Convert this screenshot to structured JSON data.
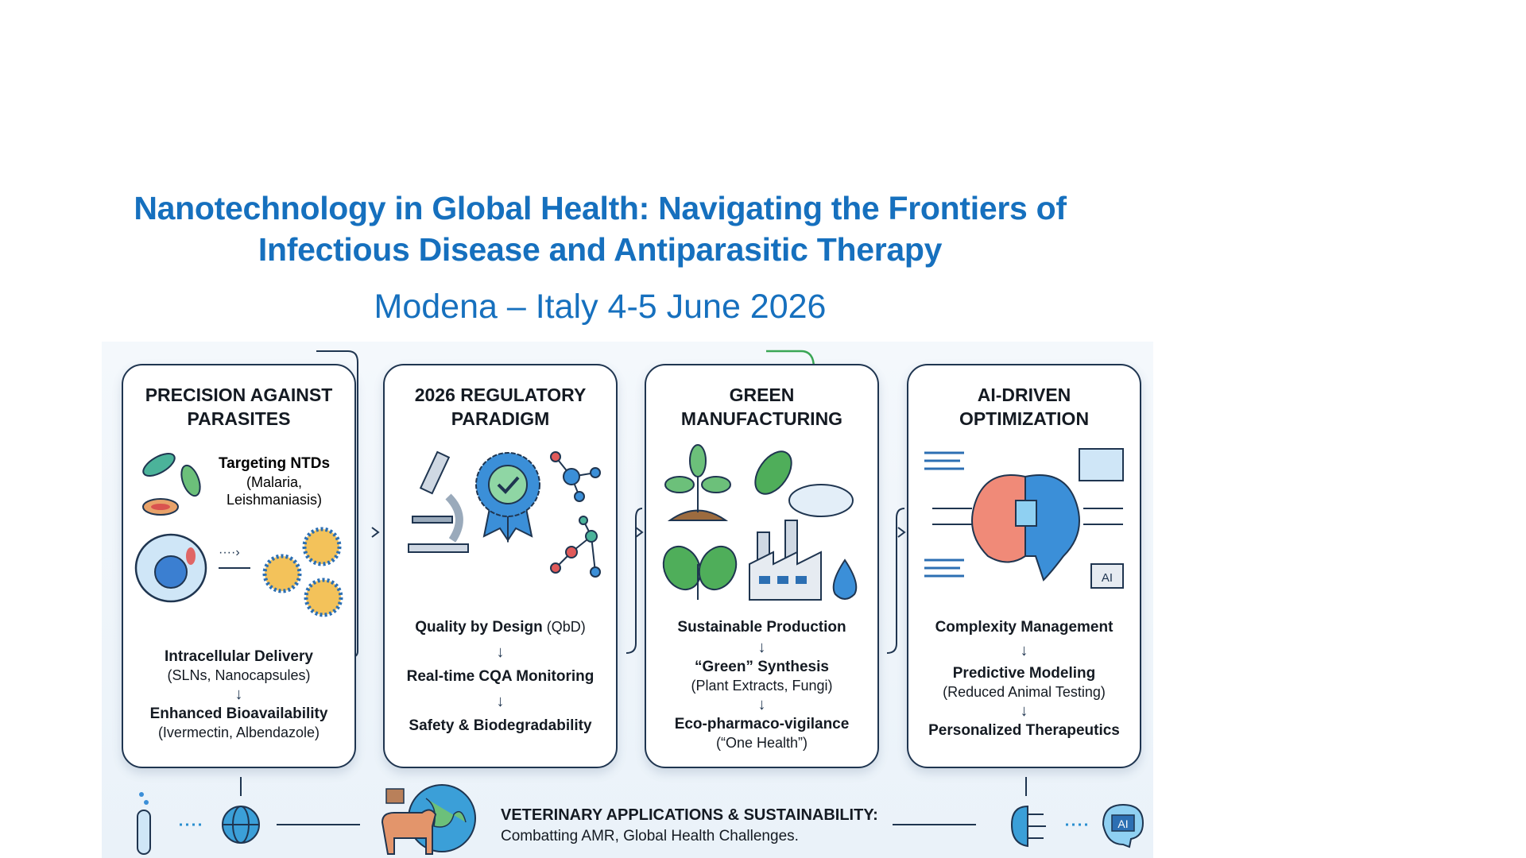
{
  "header": {
    "title_line1": "Nanotechnology in Global Health: Navigating the Frontiers of",
    "title_line2": "Infectious Disease and Antiparasitic Therapy",
    "subtitle": "Modena – Italy 4-5 June 2026"
  },
  "cards": [
    {
      "heading": [
        "PRECISION AGAINST",
        "PARASITES"
      ],
      "illustration_text": {
        "title": "Targeting NTDs",
        "sub1": "(Malaria,",
        "sub2": "Leishmaniasis)"
      },
      "items": [
        {
          "title": "Intracellular Delivery",
          "sub": "(SLNs, Nanocapsules)"
        },
        {
          "title": "Enhanced Bioavailability",
          "sub": "(Ivermectin, Albendazole)"
        }
      ]
    },
    {
      "heading": [
        "2026 REGULATORY",
        "PARADIGM"
      ],
      "items": [
        {
          "title": "Quality by Design",
          "title_suffix": " (QbD)"
        },
        {
          "title": "Real-time CQA Monitoring"
        },
        {
          "title": "Safety & Biodegradability"
        }
      ]
    },
    {
      "heading": [
        "GREEN",
        "MANUFACTURING"
      ],
      "items": [
        {
          "title": "Sustainable Production"
        },
        {
          "title": "“Green” Synthesis",
          "sub": "(Plant Extracts, Fungi)"
        },
        {
          "title": "Eco-pharmaco-vigilance",
          "sub": "(“One Health”)"
        }
      ]
    },
    {
      "heading": [
        "AI-DRIVEN",
        "OPTIMIZATION"
      ],
      "ai_badge": "AI",
      "items": [
        {
          "title": "Complexity Management"
        },
        {
          "title": "Predictive Modeling",
          "sub": "(Reduced Animal Testing)"
        },
        {
          "title": "Personalized Therapeutics"
        }
      ]
    }
  ],
  "footer": {
    "title": "VETERINARY APPLICATIONS & SUSTAINABILITY:",
    "subtitle": "Combatting AMR, Global Health Challenges.",
    "ai_badge": "AI"
  },
  "arrow_glyph": "↓",
  "colors": {
    "title": "#1670be",
    "card_border": "#1f3550",
    "green": "#3aa655",
    "panel_bg": "#eef4fa"
  }
}
